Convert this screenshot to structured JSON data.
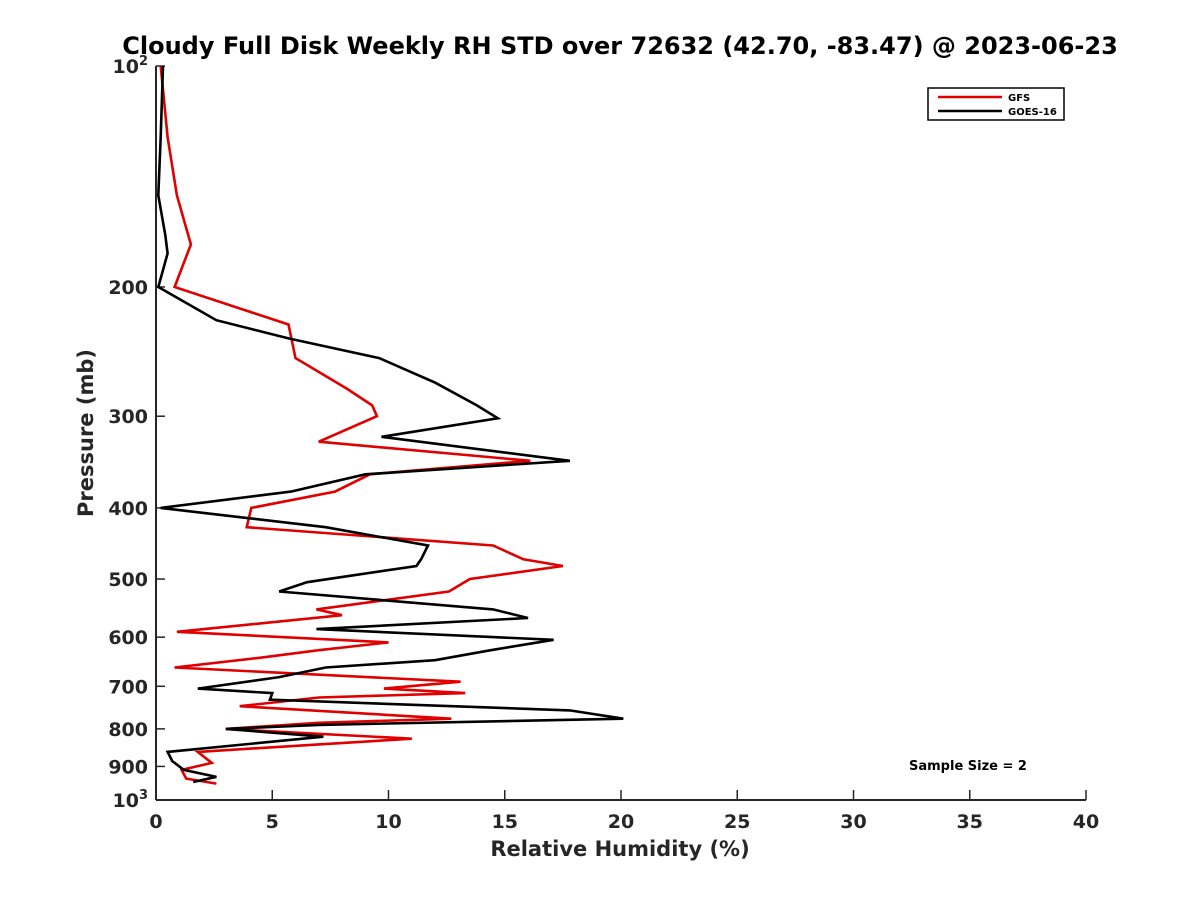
{
  "chart_data": {
    "type": "line",
    "title": "Cloudy Full Disk Weekly RH STD over 72632 (42.70, -83.47) @ 2023-06-23",
    "xlabel": "Relative Humidity (%)",
    "ylabel": "Pressure (mb)",
    "xlim": [
      0,
      40
    ],
    "ylim": [
      100,
      1000
    ],
    "yscale": "log",
    "y_reversed": true,
    "x_ticks": [
      0,
      5,
      10,
      15,
      20,
      25,
      30,
      35,
      40
    ],
    "x_tick_labels": [
      "0",
      "5",
      "10",
      "15",
      "20",
      "25",
      "30",
      "35",
      "40"
    ],
    "y_ticks": [
      100,
      200,
      300,
      400,
      500,
      600,
      700,
      800,
      900,
      1000
    ],
    "y_tick_labels": [
      {
        "base": "10",
        "exp": "2"
      },
      {
        "base": "200"
      },
      {
        "base": "300"
      },
      {
        "base": "400"
      },
      {
        "base": "500"
      },
      {
        "base": "600"
      },
      {
        "base": "700"
      },
      {
        "base": "800"
      },
      {
        "base": "900"
      },
      {
        "base": "10",
        "exp": "3"
      }
    ],
    "grid": false,
    "legend_position": "top-right",
    "annotation": "Sample Size = 2",
    "series": [
      {
        "name": "GFS",
        "color": "#e00000",
        "points": [
          [
            0.2,
            100
          ],
          [
            0.5,
            125
          ],
          [
            0.9,
            150
          ],
          [
            1.5,
            175
          ],
          [
            0.8,
            200
          ],
          [
            5.7,
            225
          ],
          [
            6.0,
            250
          ],
          [
            8.2,
            275
          ],
          [
            9.3,
            290
          ],
          [
            9.5,
            300
          ],
          [
            7.0,
            325
          ],
          [
            16.1,
            345
          ],
          [
            9.2,
            360
          ],
          [
            7.7,
            380
          ],
          [
            4.1,
            400
          ],
          [
            3.9,
            425
          ],
          [
            14.5,
            450
          ],
          [
            15.8,
            470
          ],
          [
            17.5,
            480
          ],
          [
            13.5,
            500
          ],
          [
            12.6,
            520
          ],
          [
            6.9,
            550
          ],
          [
            8.0,
            560
          ],
          [
            0.9,
            590
          ],
          [
            10.0,
            610
          ],
          [
            7.0,
            625
          ],
          [
            4.5,
            640
          ],
          [
            0.8,
            660
          ],
          [
            13.1,
            690
          ],
          [
            9.8,
            705
          ],
          [
            13.3,
            715
          ],
          [
            7.0,
            725
          ],
          [
            3.6,
            745
          ],
          [
            12.7,
            775
          ],
          [
            7.0,
            785
          ],
          [
            3.0,
            800
          ],
          [
            11.0,
            825
          ],
          [
            7.0,
            840
          ],
          [
            1.8,
            860
          ],
          [
            2.4,
            890
          ],
          [
            1.1,
            910
          ],
          [
            1.3,
            935
          ],
          [
            2.6,
            950
          ]
        ]
      },
      {
        "name": "GOES-16",
        "color": "#000000",
        "points": [
          [
            0.3,
            100
          ],
          [
            0.2,
            125
          ],
          [
            0.1,
            150
          ],
          [
            0.4,
            170
          ],
          [
            0.5,
            180
          ],
          [
            0.1,
            200
          ],
          [
            2.6,
            222
          ],
          [
            5.7,
            235
          ],
          [
            9.6,
            250
          ],
          [
            12.0,
            270
          ],
          [
            13.8,
            290
          ],
          [
            14.7,
            302
          ],
          [
            9.7,
            320
          ],
          [
            17.8,
            345
          ],
          [
            9.0,
            360
          ],
          [
            5.8,
            380
          ],
          [
            0.2,
            400
          ],
          [
            7.3,
            425
          ],
          [
            11.7,
            450
          ],
          [
            11.4,
            470
          ],
          [
            11.2,
            480
          ],
          [
            6.5,
            505
          ],
          [
            5.3,
            520
          ],
          [
            14.5,
            550
          ],
          [
            16.0,
            565
          ],
          [
            6.9,
            585
          ],
          [
            17.1,
            605
          ],
          [
            14.4,
            625
          ],
          [
            12.0,
            645
          ],
          [
            7.3,
            660
          ],
          [
            5.3,
            680
          ],
          [
            1.8,
            705
          ],
          [
            5.0,
            715
          ],
          [
            4.9,
            730
          ],
          [
            17.8,
            755
          ],
          [
            20.1,
            775
          ],
          [
            7.0,
            790
          ],
          [
            3.0,
            800
          ],
          [
            7.2,
            820
          ],
          [
            0.5,
            860
          ],
          [
            0.7,
            885
          ],
          [
            1.2,
            910
          ],
          [
            2.6,
            930
          ],
          [
            1.6,
            945
          ]
        ]
      }
    ]
  }
}
